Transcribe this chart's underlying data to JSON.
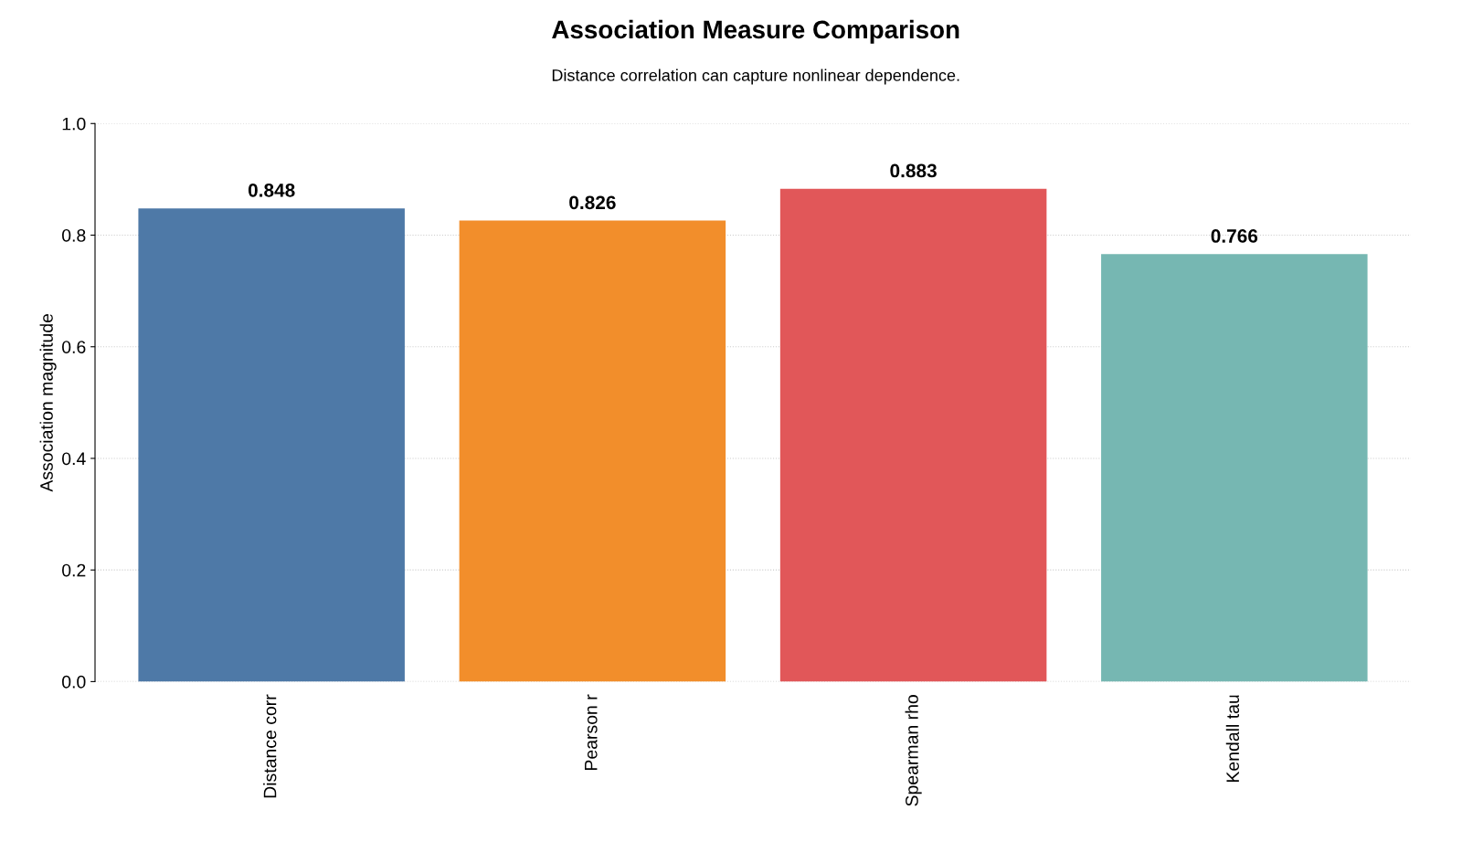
{
  "chart_data": {
    "type": "bar",
    "title": "Association Measure Comparison",
    "subtitle": "Distance correlation can capture nonlinear dependence.",
    "ylabel": "Association magnitude",
    "categories": [
      "Distance corr",
      "Pearson r",
      "Spearman rho",
      "Kendall tau"
    ],
    "values": [
      0.848,
      0.826,
      0.883,
      0.766
    ],
    "colors": [
      "#4e79a7",
      "#f28e2b",
      "#e15759",
      "#76b7b2"
    ],
    "ylim": [
      0,
      1
    ],
    "yticks": [
      "0.0",
      "0.2",
      "0.4",
      "0.6",
      "0.8",
      "1.0"
    ],
    "data_labels": true,
    "grid": "y"
  }
}
